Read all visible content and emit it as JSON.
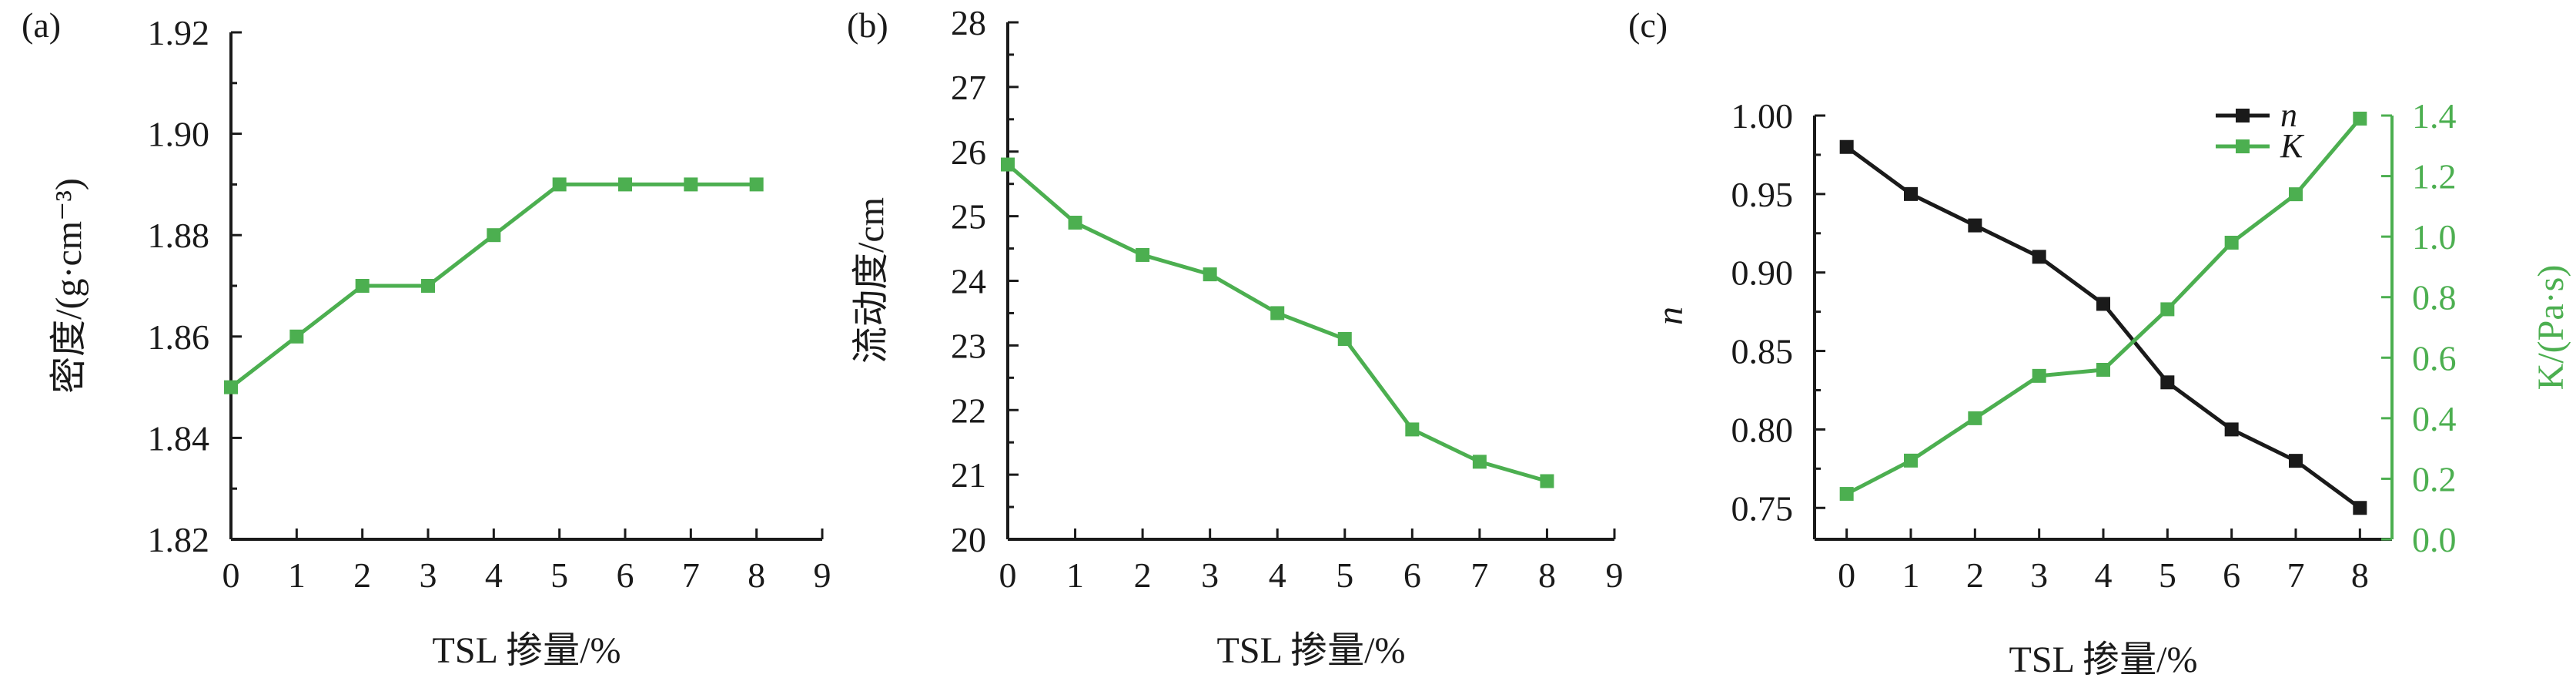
{
  "chart_data": [
    {
      "panel_label": "(a)",
      "type": "line",
      "xlabel": "TSL 掺量/%",
      "ylabel": "密度/(g·cm⁻³)",
      "xlim": [
        0,
        9
      ],
      "ylim": [
        1.82,
        1.92
      ],
      "xticks": [
        "0",
        "1",
        "2",
        "3",
        "4",
        "5",
        "6",
        "7",
        "8",
        "9"
      ],
      "yticks": [
        "1.82",
        "1.84",
        "1.86",
        "1.88",
        "1.90",
        "1.92"
      ],
      "grid": false,
      "series": [
        {
          "color": "#4caf50",
          "x": [
            0,
            1,
            2,
            3,
            4,
            5,
            6,
            7,
            8
          ],
          "values": [
            1.85,
            1.86,
            1.87,
            1.87,
            1.88,
            1.89,
            1.89,
            1.89,
            1.89
          ]
        }
      ]
    },
    {
      "panel_label": "(b)",
      "type": "line",
      "xlabel": "TSL 掺量/%",
      "ylabel": "流动度/cm",
      "xlim": [
        0,
        9
      ],
      "ylim": [
        20,
        28
      ],
      "xticks": [
        "0",
        "1",
        "2",
        "3",
        "4",
        "5",
        "6",
        "7",
        "8",
        "9"
      ],
      "yticks": [
        "20",
        "21",
        "22",
        "23",
        "24",
        "25",
        "26",
        "27",
        "28"
      ],
      "grid": false,
      "series": [
        {
          "color": "#4caf50",
          "x": [
            0,
            1,
            2,
            3,
            4,
            5,
            6,
            7,
            8
          ],
          "values": [
            25.8,
            24.9,
            24.4,
            24.1,
            23.5,
            23.1,
            21.7,
            21.2,
            20.9
          ]
        }
      ]
    },
    {
      "panel_label": "(c)",
      "type": "line",
      "xlabel": "TSL 掺量/%",
      "ylabel": "n",
      "y2label": "K/(Pa·s)",
      "xlim": [
        -0.5,
        8.5
      ],
      "ylim": [
        0.73,
        1.0
      ],
      "y2lim": [
        0,
        1.4
      ],
      "xticks": [
        "0",
        "1",
        "2",
        "3",
        "4",
        "5",
        "6",
        "7",
        "8"
      ],
      "yticks": [
        "0.75",
        "0.80",
        "0.85",
        "0.90",
        "0.95",
        "1.00"
      ],
      "y2ticks": [
        "0.0",
        "0.2",
        "0.4",
        "0.6",
        "0.8",
        "1.0",
        "1.2",
        "1.4"
      ],
      "grid": false,
      "legend": "top-right",
      "series": [
        {
          "name": "n",
          "axis": "left",
          "color": "#1a1a1a",
          "x": [
            0,
            1,
            2,
            3,
            4,
            5,
            6,
            7,
            8
          ],
          "values": [
            0.98,
            0.95,
            0.93,
            0.91,
            0.88,
            0.83,
            0.8,
            0.78,
            0.75
          ]
        },
        {
          "name": "K",
          "axis": "right",
          "color": "#4caf50",
          "x": [
            0,
            1,
            2,
            3,
            4,
            5,
            6,
            7,
            8
          ],
          "values": [
            0.15,
            0.26,
            0.4,
            0.54,
            0.56,
            0.76,
            0.98,
            1.14,
            1.39
          ]
        }
      ]
    }
  ]
}
